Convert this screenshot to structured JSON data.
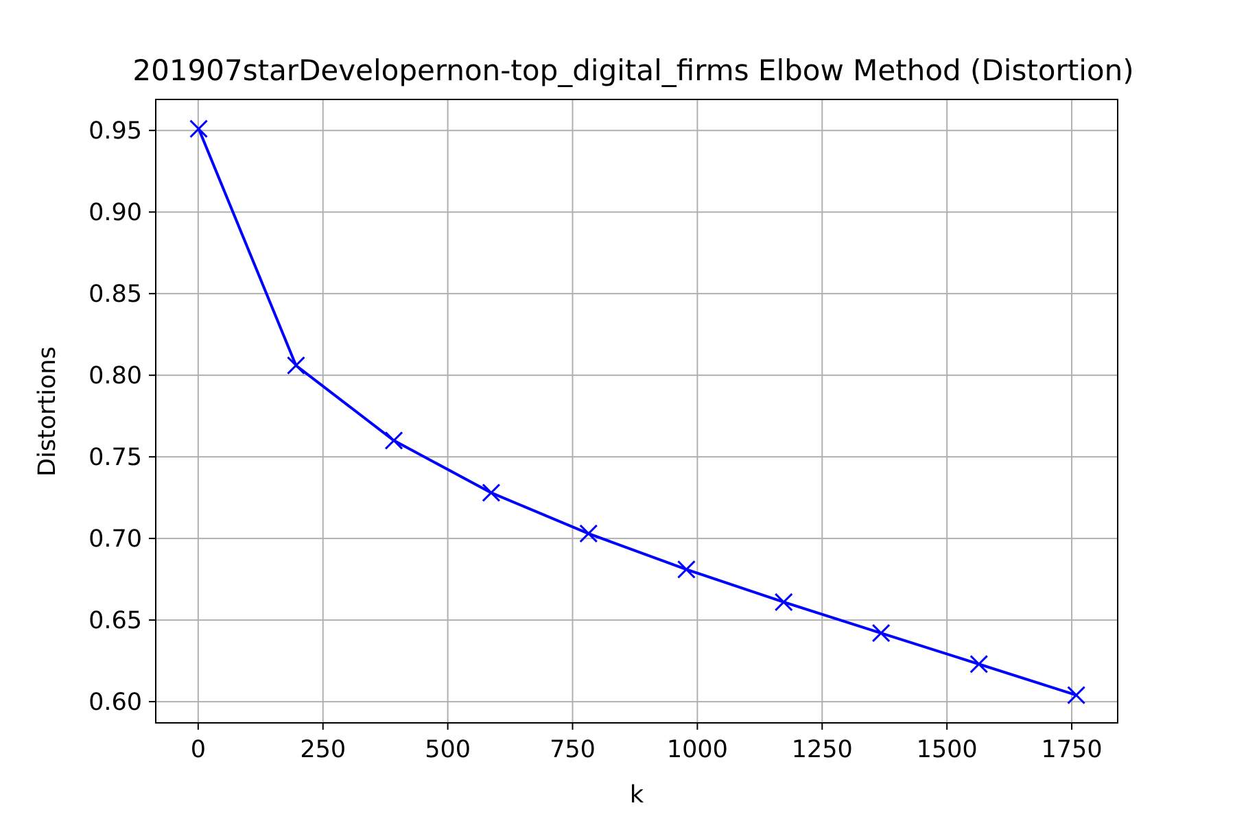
{
  "chart_data": {
    "type": "line",
    "title": "201907starDevelopernon-top_digital_firms Elbow Method (Distortion)",
    "xlabel": "k",
    "ylabel": "Distortions",
    "xlim": [
      -85,
      1842
    ],
    "ylim": [
      0.587,
      0.969
    ],
    "xticks": [
      0,
      250,
      500,
      750,
      1000,
      1250,
      1500,
      1750
    ],
    "xtick_labels": [
      "0",
      "250",
      "500",
      "750",
      "1000",
      "1250",
      "1500",
      "1750"
    ],
    "yticks": [
      0.6,
      0.65,
      0.7,
      0.75,
      0.8,
      0.85,
      0.9,
      0.95
    ],
    "ytick_labels": [
      "0.60",
      "0.65",
      "0.70",
      "0.75",
      "0.80",
      "0.85",
      "0.90",
      "0.95"
    ],
    "grid": true,
    "series": [
      {
        "color": "#0000ff",
        "marker": "x",
        "x": [
          1,
          196,
          392,
          587,
          782,
          978,
          1173,
          1368,
          1564,
          1759
        ],
        "y": [
          0.951,
          0.806,
          0.76,
          0.728,
          0.703,
          0.681,
          0.661,
          0.642,
          0.623,
          0.604
        ]
      }
    ]
  }
}
